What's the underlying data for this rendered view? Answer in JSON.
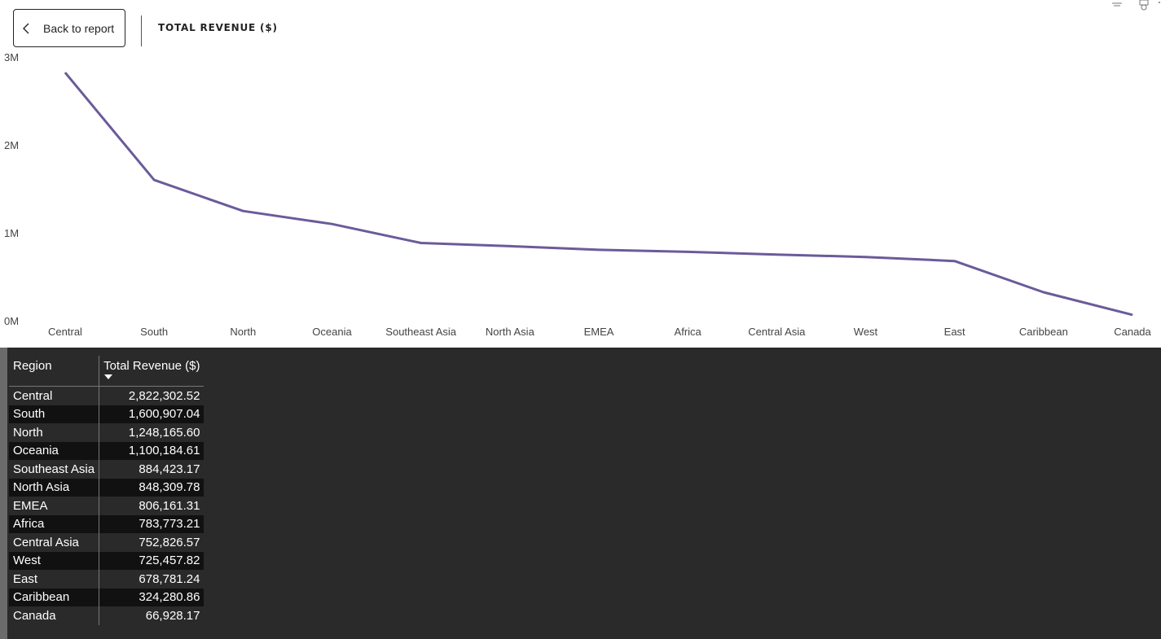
{
  "header": {
    "back_label": "Back to report",
    "title": "TOTAL REVENUE ($)"
  },
  "chart_data": {
    "type": "line",
    "title": "",
    "xlabel": "",
    "ylabel": "",
    "categories": [
      "Central",
      "South",
      "North",
      "Oceania",
      "Southeast Asia",
      "North Asia",
      "EMEA",
      "Africa",
      "Central Asia",
      "West",
      "East",
      "Caribbean",
      "Canada"
    ],
    "values": [
      2822302.52,
      1600907.04,
      1248165.6,
      1100184.61,
      884423.17,
      848309.78,
      806161.31,
      783773.21,
      752826.57,
      725457.82,
      678781.24,
      324280.86,
      66928.17
    ],
    "ylim": [
      0,
      3000000
    ],
    "yticks": [
      {
        "v": 0,
        "label": "0M"
      },
      {
        "v": 1000000,
        "label": "1M"
      },
      {
        "v": 2000000,
        "label": "2M"
      },
      {
        "v": 3000000,
        "label": "3M"
      }
    ],
    "line_color": "#6b5b9a",
    "grid": false
  },
  "table": {
    "headers": {
      "region": "Region",
      "revenue": "Total Revenue ($)"
    },
    "rows": [
      {
        "region": "Central",
        "revenue": "2,822,302.52"
      },
      {
        "region": "South",
        "revenue": "1,600,907.04"
      },
      {
        "region": "North",
        "revenue": "1,248,165.60"
      },
      {
        "region": "Oceania",
        "revenue": "1,100,184.61"
      },
      {
        "region": "Southeast Asia",
        "revenue": "884,423.17"
      },
      {
        "region": "North Asia",
        "revenue": "848,309.78"
      },
      {
        "region": "EMEA",
        "revenue": "806,161.31"
      },
      {
        "region": "Africa",
        "revenue": "783,773.21"
      },
      {
        "region": "Central Asia",
        "revenue": "752,826.57"
      },
      {
        "region": "West",
        "revenue": "725,457.82"
      },
      {
        "region": "East",
        "revenue": "678,781.24"
      },
      {
        "region": "Caribbean",
        "revenue": "324,280.86"
      },
      {
        "region": "Canada",
        "revenue": "66,928.17"
      }
    ]
  },
  "icons": {
    "back": "chevron-left-icon",
    "sort": "sort-descending-icon"
  }
}
